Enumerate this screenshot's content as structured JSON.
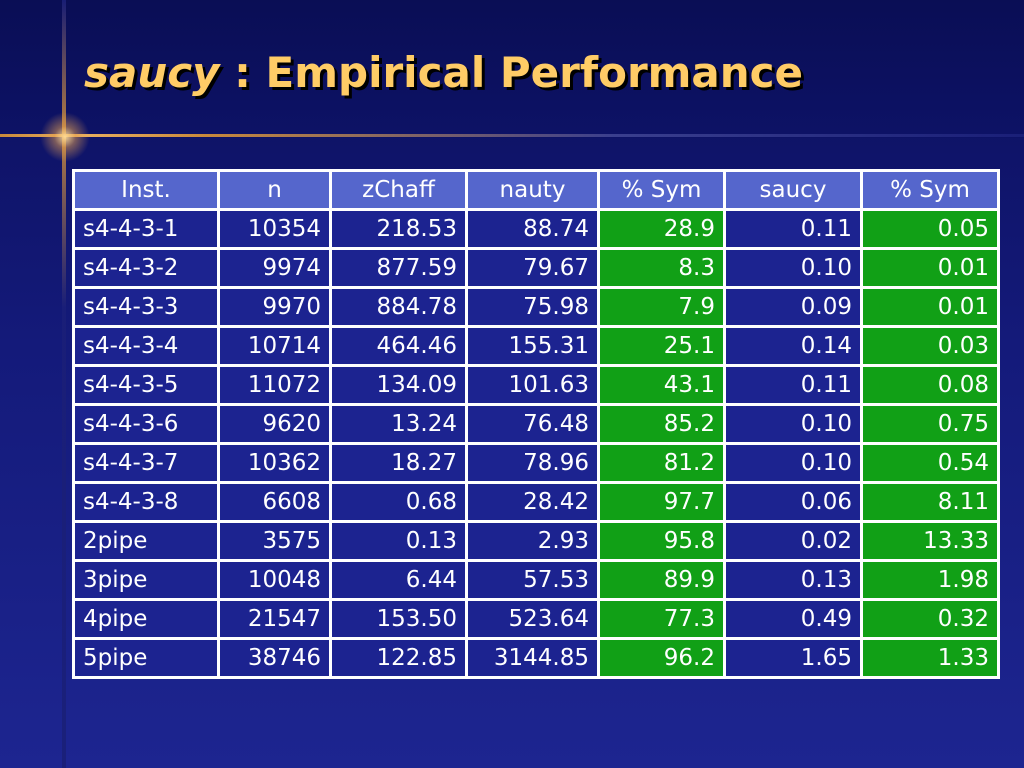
{
  "title": {
    "emphasis": "saucy",
    "rest": " : Empirical Performance"
  },
  "colors": {
    "title": "#ffcc66",
    "header_bg": "#5566cc",
    "cell_bg": "#1c2390",
    "sym_bg": "#11a016",
    "background": "#141a7a"
  },
  "table": {
    "headers": [
      "Inst.",
      "n",
      "zChaff",
      "nauty",
      "% Sym",
      "saucy",
      "% Sym"
    ],
    "rows": [
      [
        "s4-4-3-1",
        "10354",
        "218.53",
        "88.74",
        "28.9",
        "0.11",
        "0.05"
      ],
      [
        "s4-4-3-2",
        "9974",
        "877.59",
        "79.67",
        "8.3",
        "0.10",
        "0.01"
      ],
      [
        "s4-4-3-3",
        "9970",
        "884.78",
        "75.98",
        "7.9",
        "0.09",
        "0.01"
      ],
      [
        "s4-4-3-4",
        "10714",
        "464.46",
        "155.31",
        "25.1",
        "0.14",
        "0.03"
      ],
      [
        "s4-4-3-5",
        "11072",
        "134.09",
        "101.63",
        "43.1",
        "0.11",
        "0.08"
      ],
      [
        "s4-4-3-6",
        "9620",
        "13.24",
        "76.48",
        "85.2",
        "0.10",
        "0.75"
      ],
      [
        "s4-4-3-7",
        "10362",
        "18.27",
        "78.96",
        "81.2",
        "0.10",
        "0.54"
      ],
      [
        "s4-4-3-8",
        "6608",
        "0.68",
        "28.42",
        "97.7",
        "0.06",
        "8.11"
      ],
      [
        "2pipe",
        "3575",
        "0.13",
        "2.93",
        "95.8",
        "0.02",
        "13.33"
      ],
      [
        "3pipe",
        "10048",
        "6.44",
        "57.53",
        "89.9",
        "0.13",
        "1.98"
      ],
      [
        "4pipe",
        "21547",
        "153.50",
        "523.64",
        "77.3",
        "0.49",
        "0.32"
      ],
      [
        "5pipe",
        "38746",
        "122.85",
        "3144.85",
        "96.2",
        "1.65",
        "1.33"
      ]
    ]
  }
}
